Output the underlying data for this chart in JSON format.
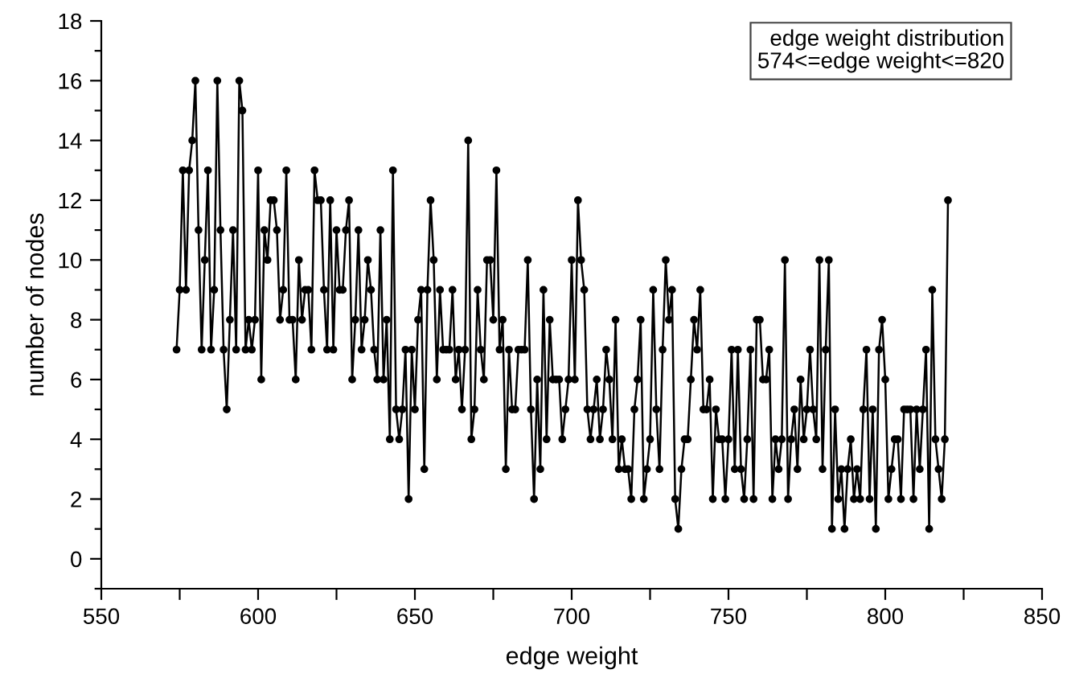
{
  "chart_data": {
    "type": "line",
    "xlabel": "edge weight",
    "ylabel": "number of nodes",
    "annotations": [
      "edge weight distribution\n574<=edge weight<=820"
    ],
    "series": [
      {
        "color": "#000000",
        "x": [
          574,
          575,
          576,
          577,
          578,
          579,
          580,
          581,
          582,
          583,
          584,
          585,
          586,
          587,
          588,
          589,
          590,
          591,
          592,
          593,
          594,
          595,
          596,
          597,
          598,
          599,
          600,
          601,
          602,
          603,
          604,
          605,
          606,
          607,
          608,
          609,
          610,
          611,
          612,
          613,
          614,
          615,
          616,
          617,
          618,
          619,
          620,
          621,
          622,
          623,
          624,
          625,
          626,
          627,
          628,
          629,
          630,
          631,
          632,
          633,
          634,
          635,
          636,
          637,
          638,
          639,
          640,
          641,
          642,
          643,
          644,
          645,
          646,
          647,
          648,
          649,
          650,
          651,
          652,
          653,
          654,
          655,
          656,
          657,
          658,
          659,
          660,
          661,
          662,
          663,
          664,
          665,
          666,
          667,
          668,
          669,
          670,
          671,
          672,
          673,
          674,
          675,
          676,
          677,
          678,
          679,
          680,
          681,
          682,
          683,
          684,
          685,
          686,
          687,
          688,
          689,
          690,
          691,
          692,
          693,
          694,
          695,
          696,
          697,
          698,
          699,
          700,
          701,
          702,
          703,
          704,
          705,
          706,
          707,
          708,
          709,
          710,
          711,
          712,
          713,
          714,
          715,
          716,
          717,
          718,
          719,
          720,
          721,
          722,
          723,
          724,
          725,
          726,
          727,
          728,
          729,
          730,
          731,
          732,
          733,
          734,
          735,
          736,
          737,
          738,
          739,
          740,
          741,
          742,
          743,
          744,
          745,
          746,
          747,
          748,
          749,
          750,
          751,
          752,
          753,
          754,
          755,
          756,
          757,
          758,
          759,
          760,
          761,
          762,
          763,
          764,
          765,
          766,
          767,
          768,
          769,
          770,
          771,
          772,
          773,
          774,
          775,
          776,
          777,
          778,
          779,
          780,
          781,
          782,
          783,
          784,
          785,
          786,
          787,
          788,
          789,
          790,
          791,
          792,
          793,
          794,
          795,
          796,
          797,
          798,
          799,
          800,
          801,
          802,
          803,
          804,
          805,
          806,
          807,
          808,
          809,
          810,
          811,
          812,
          813,
          814,
          815,
          816,
          817,
          818,
          819,
          820
        ],
        "values": [
          7,
          9,
          13,
          9,
          13,
          14,
          16,
          11,
          7,
          10,
          13,
          7,
          9,
          16,
          11,
          7,
          5,
          8,
          11,
          7,
          16,
          15,
          7,
          8,
          7,
          8,
          13,
          6,
          11,
          10,
          12,
          12,
          11,
          8,
          9,
          13,
          8,
          8,
          6,
          10,
          8,
          9,
          9,
          7,
          13,
          12,
          12,
          9,
          7,
          12,
          7,
          11,
          9,
          9,
          11,
          12,
          6,
          8,
          11,
          7,
          8,
          10,
          9,
          7,
          6,
          11,
          6,
          8,
          4,
          13,
          5,
          4,
          5,
          7,
          2,
          7,
          5,
          8,
          9,
          3,
          9,
          12,
          10,
          6,
          9,
          7,
          7,
          7,
          9,
          6,
          7,
          5,
          7,
          14,
          4,
          5,
          9,
          7,
          6,
          10,
          10,
          8,
          13,
          7,
          8,
          3,
          7,
          5,
          5,
          7,
          7,
          7,
          10,
          5,
          2,
          6,
          3,
          9,
          4,
          8,
          6,
          6,
          6,
          4,
          5,
          6,
          10,
          6,
          12,
          10,
          9,
          5,
          4,
          5,
          6,
          4,
          5,
          7,
          6,
          4,
          8,
          3,
          4,
          3,
          3,
          2,
          5,
          6,
          8,
          2,
          3,
          4,
          9,
          5,
          3,
          7,
          10,
          8,
          9,
          2,
          1,
          3,
          4,
          4,
          6,
          8,
          7,
          9,
          5,
          5,
          6,
          2,
          5,
          4,
          4,
          2,
          4,
          7,
          3,
          7,
          3,
          2,
          4,
          7,
          2,
          8,
          8,
          6,
          6,
          7,
          2,
          4,
          3,
          4,
          10,
          2,
          4,
          5,
          3,
          6,
          4,
          5,
          7,
          5,
          4,
          10,
          3,
          7,
          10,
          1,
          5,
          2,
          3,
          1,
          3,
          4,
          2,
          3,
          2,
          5,
          7,
          2,
          5,
          1,
          7,
          8,
          6,
          2,
          3,
          4,
          4,
          2,
          5,
          5,
          5,
          2,
          5,
          3,
          5,
          7,
          1,
          9,
          4,
          3,
          2,
          4,
          12
        ]
      }
    ],
    "xlim": [
      550,
      850
    ],
    "xticks": [
      550,
      {
        "value": 575,
        "label": null
      },
      600,
      {
        "value": 625,
        "label": null
      },
      650,
      {
        "value": 675,
        "label": null
      },
      700,
      {
        "value": 725,
        "label": null
      },
      750,
      {
        "value": 775,
        "label": null
      },
      800,
      {
        "value": 825,
        "label": null
      },
      850
    ],
    "ylim": [
      -1,
      18
    ],
    "yticks": [
      {
        "value": -1,
        "label": null
      },
      0,
      {
        "value": 1,
        "label": null
      },
      2,
      {
        "value": 3,
        "label": null
      },
      4,
      {
        "value": 5,
        "label": null
      },
      6,
      {
        "value": 7,
        "label": null
      },
      8,
      {
        "value": 9,
        "label": null
      },
      10,
      {
        "value": 11,
        "label": null
      },
      12,
      {
        "value": 13,
        "label": null
      },
      14,
      {
        "value": 15,
        "label": null
      },
      16,
      {
        "value": 17,
        "label": null
      },
      18
    ],
    "marker": "circle",
    "line_style": "solid",
    "grid": false,
    "legend": false
  }
}
